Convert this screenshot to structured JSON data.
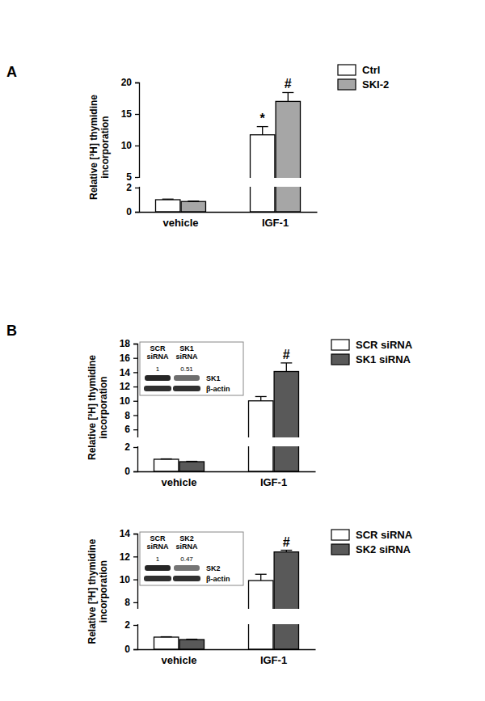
{
  "chart_data": [
    {
      "type": "bar",
      "panel": "A",
      "ylabel": "Relative [³H] thymidine incorporation",
      "categories": [
        "vehicle",
        "IGF-1"
      ],
      "series": [
        {
          "name": "Ctrl",
          "color": "#ffffff",
          "values": [
            1.0,
            11.7
          ],
          "errors": [
            0.05,
            1.3
          ],
          "annotations": [
            null,
            "*"
          ]
        },
        {
          "name": "SKI-2",
          "color": "#a6a6a6",
          "values": [
            0.85,
            17.0
          ],
          "errors": [
            0.04,
            1.4
          ],
          "annotations": [
            null,
            "#"
          ]
        }
      ],
      "ylim": [
        0,
        20
      ],
      "yticks": [
        0,
        2,
        5,
        10,
        15,
        20
      ],
      "y_break": [
        2,
        5
      ],
      "legend": "right"
    },
    {
      "type": "bar",
      "panel": "B",
      "ylabel": "Relative [³H] thymidine incorporation",
      "categories": [
        "vehicle",
        "IGF-1"
      ],
      "series": [
        {
          "name": "SCR siRNA",
          "color": "#ffffff",
          "values": [
            1.0,
            10.0
          ],
          "errors": [
            0.03,
            0.6
          ],
          "annotations": [
            null,
            null
          ]
        },
        {
          "name": "SK1 siRNA",
          "color": "#595959",
          "values": [
            0.8,
            14.1
          ],
          "errors": [
            0.03,
            1.2
          ],
          "annotations": [
            null,
            "#"
          ]
        }
      ],
      "ylim": [
        0,
        18
      ],
      "yticks": [
        0,
        2,
        6,
        8,
        10,
        12,
        14,
        16,
        18
      ],
      "y_break": [
        2,
        5
      ],
      "legend": "right",
      "inset": {
        "columns": [
          "SCR siRNA",
          "SK1 siRNA"
        ],
        "ratios": [
          1,
          0.51
        ],
        "rows": [
          "SK1",
          "β-actin"
        ]
      }
    },
    {
      "type": "bar",
      "ylabel": "Relative [³H] thymidine incorporation",
      "categories": [
        "vehicle",
        "IGF-1"
      ],
      "series": [
        {
          "name": "SCR siRNA",
          "color": "#ffffff",
          "values": [
            1.0,
            9.9
          ],
          "errors": [
            0.03,
            0.55
          ],
          "annotations": [
            null,
            null
          ]
        },
        {
          "name": "SK2 siRNA",
          "color": "#595959",
          "values": [
            0.8,
            12.4
          ],
          "errors": [
            0.03,
            0.15
          ],
          "annotations": [
            null,
            "#"
          ]
        }
      ],
      "ylim": [
        0,
        14
      ],
      "yticks": [
        0,
        2,
        8,
        10,
        12,
        14
      ],
      "y_break": [
        2,
        7.5
      ],
      "legend": "right",
      "inset": {
        "columns": [
          "SCR siRNA",
          "SK2 siRNA"
        ],
        "ratios": [
          1,
          0.47
        ],
        "rows": [
          "SK2",
          "β-actin"
        ]
      }
    }
  ]
}
